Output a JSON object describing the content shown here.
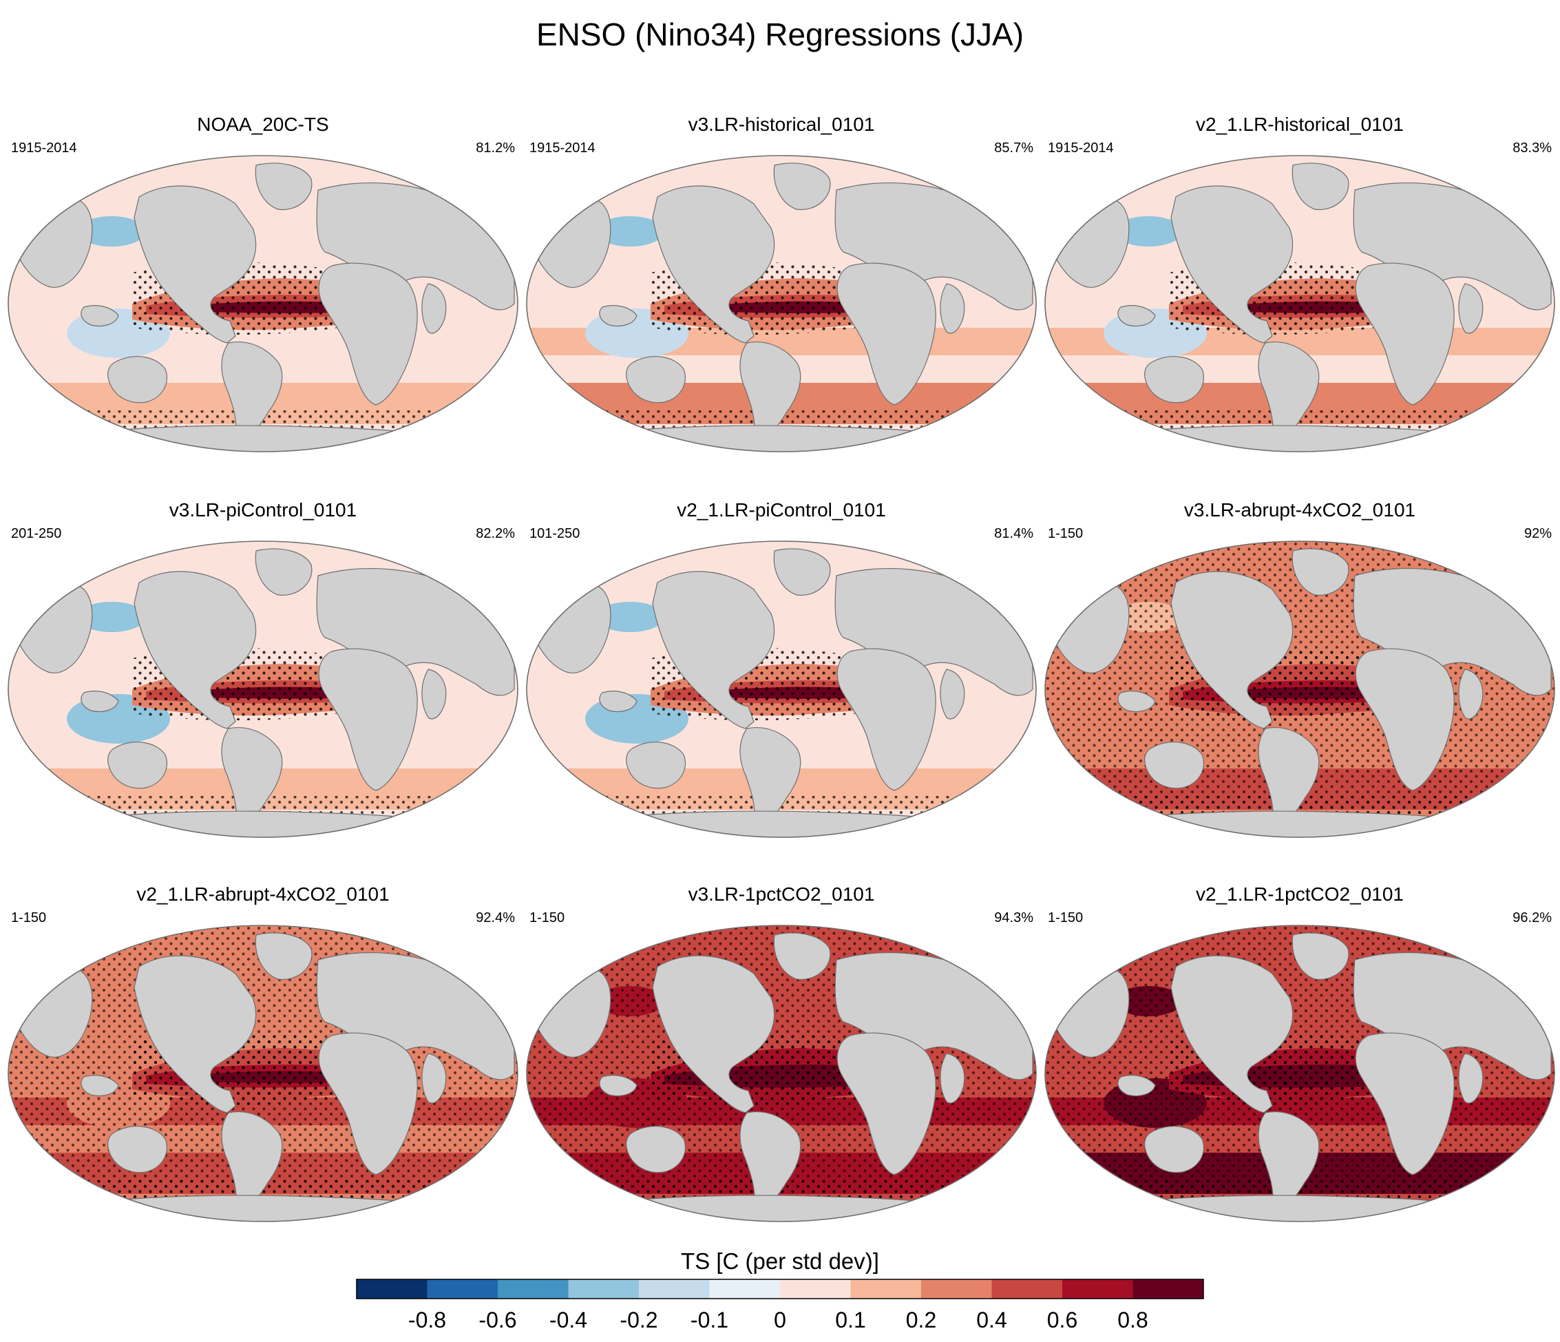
{
  "chart_data": {
    "type": "heatmap",
    "title": "ENSO (Nino34) Regressions (JJA)",
    "colorbar": {
      "label": "TS [C (per std dev)]",
      "tick_labels": [
        "-0.8",
        "-0.6",
        "-0.4",
        "-0.2",
        "-0.1",
        "0",
        "0.1",
        "0.2",
        "0.4",
        "0.6",
        "0.8"
      ],
      "bin_colors": [
        "#08306b",
        "#2166ac",
        "#4393c3",
        "#92c5de",
        "#c6dcec",
        "#e7f0f6",
        "#fbe3dc",
        "#f7b89b",
        "#e58368",
        "#c94741",
        "#a50f25",
        "#67001f"
      ]
    },
    "panels": [
      {
        "title": "NOAA_20C-TS",
        "years": "1915-2014",
        "pattern_corr": "81.2%",
        "warming": 0.05
      },
      {
        "title": "v3.LR-historical_0101",
        "years": "1915-2014",
        "pattern_corr": "85.7%",
        "warming": 0.1
      },
      {
        "title": "v2_1.LR-historical_0101",
        "years": "1915-2014",
        "pattern_corr": "83.3%",
        "warming": 0.1
      },
      {
        "title": "v3.LR-piControl_0101",
        "years": "201-250",
        "pattern_corr": "82.2%",
        "warming": 0.0
      },
      {
        "title": "v2_1.LR-piControl_0101",
        "years": "101-250",
        "pattern_corr": "81.4%",
        "warming": 0.0
      },
      {
        "title": "v3.LR-abrupt-4xCO2_0101",
        "years": "1-150",
        "pattern_corr": "92%",
        "warming": 0.45
      },
      {
        "title": "v2_1.LR-abrupt-4xCO2_0101",
        "years": "1-150",
        "pattern_corr": "92.4%",
        "warming": 0.55
      },
      {
        "title": "v3.LR-1pctCO2_0101",
        "years": "1-150",
        "pattern_corr": "94.3%",
        "warming": 0.8
      },
      {
        "title": "v2_1.LR-1pctCO2_0101",
        "years": "1-150",
        "pattern_corr": "96.2%",
        "warming": 1.0
      }
    ]
  },
  "colors": {
    "land": "#d0d0d0",
    "coast": "#6e6e6e",
    "stipple": "#000000"
  }
}
